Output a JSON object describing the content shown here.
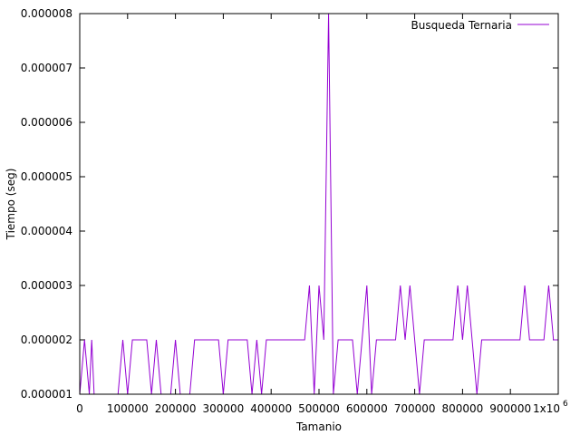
{
  "chart_data": {
    "type": "line",
    "title": "",
    "xlabel": "Tamanio",
    "ylabel": "Tiempo (seg)",
    "xlim": [
      0,
      1000000
    ],
    "ylim": [
      1e-06,
      8e-06
    ],
    "grid": false,
    "legend_position": "top-right",
    "x_ticks": [
      0,
      100000,
      200000,
      300000,
      400000,
      500000,
      600000,
      700000,
      800000,
      900000,
      1000000
    ],
    "x_tick_labels": [
      "0",
      "100000",
      "200000",
      "300000",
      "400000",
      "500000",
      "600000",
      "700000",
      "800000",
      "900000",
      "1x10"
    ],
    "x_last_tick_exponent": "6",
    "y_ticks": [
      1e-06,
      2e-06,
      3e-06,
      4e-06,
      5e-06,
      6e-06,
      7e-06,
      8e-06
    ],
    "y_tick_labels": [
      "0.000001",
      "0.000002",
      "0.000003",
      "0.000004",
      "0.000005",
      "0.000006",
      "0.000007",
      "0.000008"
    ],
    "series": [
      {
        "name": "Busqueda Ternaria",
        "color": "#9400d3",
        "points": [
          [
            0,
            1e-06
          ],
          [
            10000,
            2e-06
          ],
          [
            20000,
            1e-06
          ],
          [
            25000,
            2e-06
          ],
          [
            30000,
            1e-06
          ],
          [
            40000,
            1e-06
          ],
          [
            50000,
            1e-06
          ],
          [
            60000,
            1e-06
          ],
          [
            70000,
            1e-06
          ],
          [
            80000,
            1e-06
          ],
          [
            90000,
            2e-06
          ],
          [
            100000,
            1e-06
          ],
          [
            110000,
            2e-06
          ],
          [
            120000,
            2e-06
          ],
          [
            130000,
            2e-06
          ],
          [
            140000,
            2e-06
          ],
          [
            150000,
            1e-06
          ],
          [
            160000,
            2e-06
          ],
          [
            170000,
            1e-06
          ],
          [
            180000,
            1e-06
          ],
          [
            190000,
            1e-06
          ],
          [
            200000,
            2e-06
          ],
          [
            210000,
            1e-06
          ],
          [
            220000,
            1e-06
          ],
          [
            230000,
            1e-06
          ],
          [
            240000,
            2e-06
          ],
          [
            250000,
            2e-06
          ],
          [
            260000,
            2e-06
          ],
          [
            270000,
            2e-06
          ],
          [
            280000,
            2e-06
          ],
          [
            290000,
            2e-06
          ],
          [
            300000,
            1e-06
          ],
          [
            310000,
            2e-06
          ],
          [
            320000,
            2e-06
          ],
          [
            330000,
            2e-06
          ],
          [
            340000,
            2e-06
          ],
          [
            350000,
            2e-06
          ],
          [
            360000,
            1e-06
          ],
          [
            370000,
            2e-06
          ],
          [
            380000,
            1e-06
          ],
          [
            390000,
            2e-06
          ],
          [
            400000,
            2e-06
          ],
          [
            410000,
            2e-06
          ],
          [
            420000,
            2e-06
          ],
          [
            430000,
            2e-06
          ],
          [
            440000,
            2e-06
          ],
          [
            450000,
            2e-06
          ],
          [
            460000,
            2e-06
          ],
          [
            470000,
            2e-06
          ],
          [
            480000,
            3e-06
          ],
          [
            490000,
            1e-06
          ],
          [
            500000,
            3e-06
          ],
          [
            510000,
            2e-06
          ],
          [
            520000,
            8e-06
          ],
          [
            530000,
            1e-06
          ],
          [
            540000,
            2e-06
          ],
          [
            550000,
            2e-06
          ],
          [
            560000,
            2e-06
          ],
          [
            570000,
            2e-06
          ],
          [
            580000,
            1e-06
          ],
          [
            590000,
            2e-06
          ],
          [
            600000,
            3e-06
          ],
          [
            610000,
            1e-06
          ],
          [
            620000,
            2e-06
          ],
          [
            630000,
            2e-06
          ],
          [
            640000,
            2e-06
          ],
          [
            650000,
            2e-06
          ],
          [
            660000,
            2e-06
          ],
          [
            670000,
            3e-06
          ],
          [
            680000,
            2e-06
          ],
          [
            690000,
            3e-06
          ],
          [
            700000,
            2e-06
          ],
          [
            710000,
            1e-06
          ],
          [
            720000,
            2e-06
          ],
          [
            730000,
            2e-06
          ],
          [
            740000,
            2e-06
          ],
          [
            750000,
            2e-06
          ],
          [
            760000,
            2e-06
          ],
          [
            770000,
            2e-06
          ],
          [
            780000,
            2e-06
          ],
          [
            790000,
            3e-06
          ],
          [
            800000,
            2e-06
          ],
          [
            810000,
            3e-06
          ],
          [
            820000,
            2e-06
          ],
          [
            830000,
            1e-06
          ],
          [
            840000,
            2e-06
          ],
          [
            850000,
            2e-06
          ],
          [
            860000,
            2e-06
          ],
          [
            870000,
            2e-06
          ],
          [
            880000,
            2e-06
          ],
          [
            890000,
            2e-06
          ],
          [
            900000,
            2e-06
          ],
          [
            910000,
            2e-06
          ],
          [
            920000,
            2e-06
          ],
          [
            930000,
            3e-06
          ],
          [
            940000,
            2e-06
          ],
          [
            950000,
            2e-06
          ],
          [
            960000,
            2e-06
          ],
          [
            970000,
            2e-06
          ],
          [
            980000,
            3e-06
          ],
          [
            990000,
            2e-06
          ],
          [
            1000000,
            2e-06
          ]
        ]
      }
    ]
  }
}
